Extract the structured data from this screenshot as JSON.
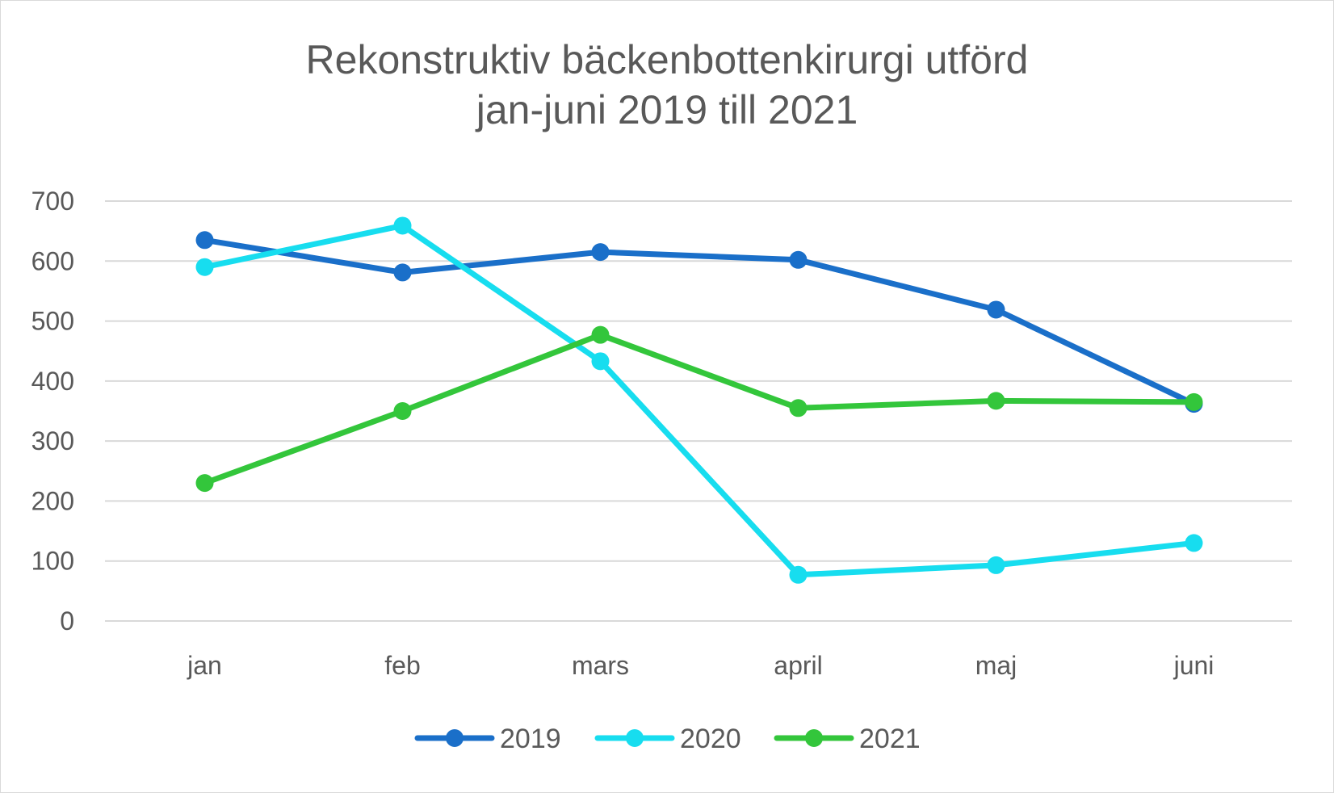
{
  "chart_data": {
    "type": "line",
    "title": "Rekonstruktiv bäckenbottenkirurgi utförd",
    "subtitle": "jan-juni 2019 till 2021",
    "xlabel": "",
    "ylabel": "",
    "categories": [
      "jan",
      "feb",
      "mars",
      "april",
      "maj",
      "juni"
    ],
    "ylim": [
      0,
      700
    ],
    "yticks": [
      0,
      100,
      200,
      300,
      400,
      500,
      600,
      700
    ],
    "grid": true,
    "legend_position": "bottom",
    "series": [
      {
        "name": "2019",
        "color": "#1a6fc9",
        "values": [
          635,
          581,
          615,
          602,
          519,
          362
        ]
      },
      {
        "name": "2020",
        "color": "#17ddef",
        "values": [
          590,
          659,
          433,
          77,
          93,
          130
        ]
      },
      {
        "name": "2021",
        "color": "#33c63b",
        "values": [
          230,
          350,
          477,
          355,
          367,
          365
        ]
      }
    ]
  }
}
